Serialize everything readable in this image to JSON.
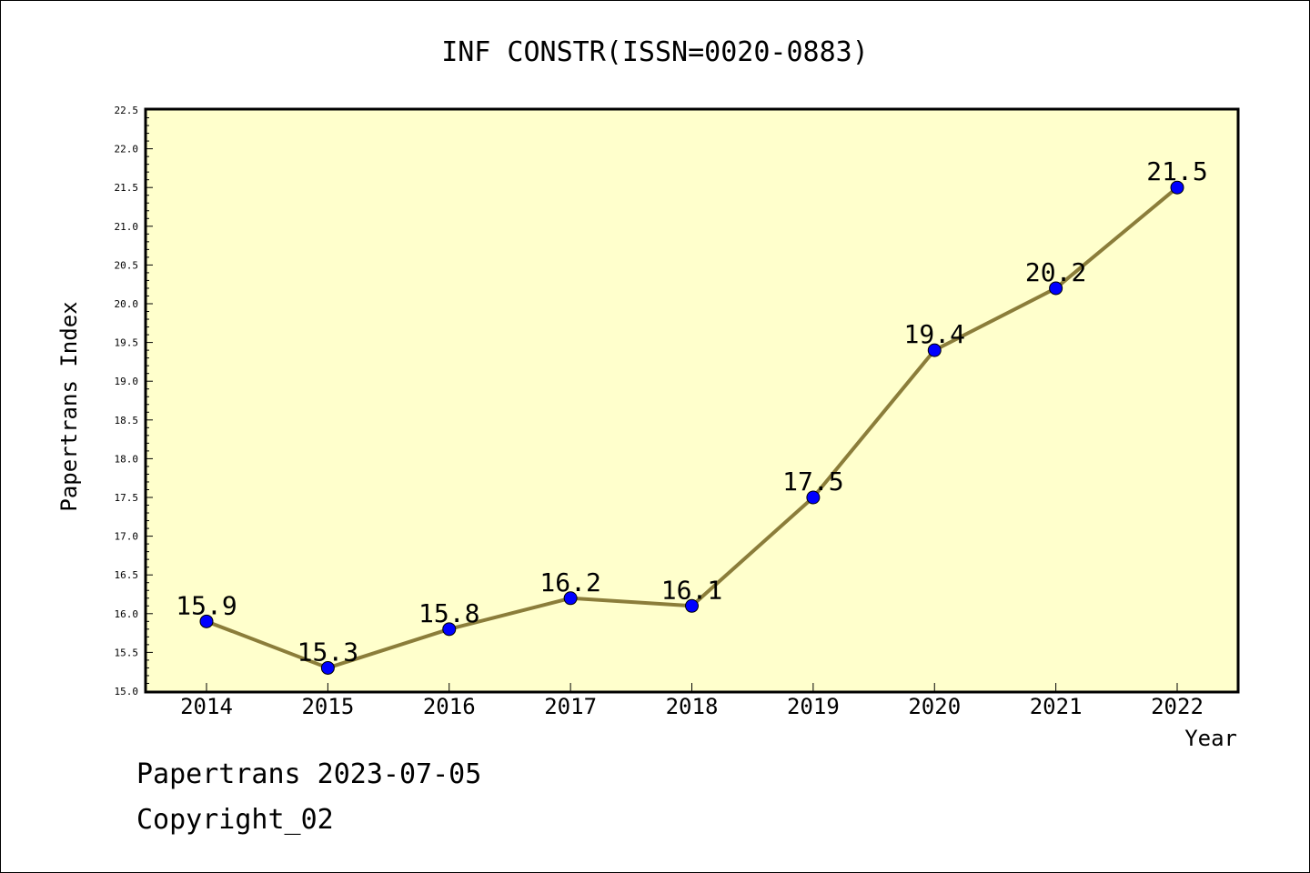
{
  "chart_data": {
    "type": "line",
    "title": "INF CONSTR(ISSN=0020-0883)",
    "xlabel": "Year",
    "ylabel": "Papertrans Index",
    "categories": [
      "2014",
      "2015",
      "2016",
      "2017",
      "2018",
      "2019",
      "2020",
      "2021",
      "2022"
    ],
    "series": [
      {
        "values": [
          15.9,
          15.3,
          15.8,
          16.2,
          16.1,
          17.5,
          19.4,
          20.2,
          21.5
        ],
        "labels": [
          "15.9",
          "15.3",
          "15.8",
          "16.2",
          "16.1",
          "17.5",
          "19.4",
          "20.2",
          "21.5"
        ]
      }
    ],
    "ylim": [
      15.0,
      22.5
    ],
    "yticks": [
      "15.0",
      "15.5",
      "16.0",
      "16.5",
      "17.0",
      "17.5",
      "18.0",
      "18.5",
      "19.0",
      "19.5",
      "20.0",
      "20.5",
      "21.0",
      "21.5",
      "22.0",
      "22.5"
    ],
    "grid": false,
    "legend": "none",
    "colors": {
      "plot_background": "#ffffcc",
      "line": "#8b7d3a",
      "marker": "#0000ff",
      "axis": "#000000"
    }
  },
  "footer": {
    "date_line": "Papertrans 2023-07-05",
    "copyright": "Copyright_02"
  }
}
